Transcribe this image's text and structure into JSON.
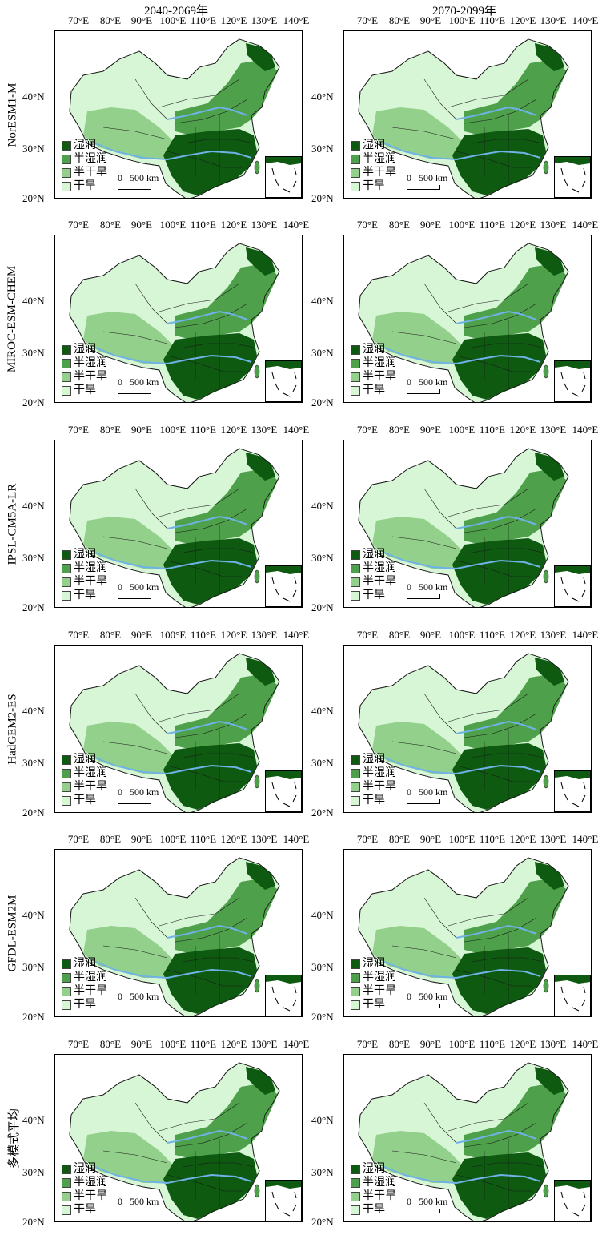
{
  "col_titles": [
    "2040-2069年",
    "2070-2099年"
  ],
  "lon_labels": [
    "70°E",
    "80°E",
    "90°E",
    "100°E",
    "110°E",
    "120°E",
    "130°E",
    "140°E"
  ],
  "lat_labels": [
    "40°N",
    "30°N",
    "20°N"
  ],
  "models": [
    "NorESM1-M",
    "MIROC-ESM-CHEM",
    "IPSL-CM5A-LR",
    "HadGEM2-ES",
    "GFDL-ESM2M",
    "多模式平均"
  ],
  "legend": [
    {
      "label": "湿润",
      "color": "#0d5a10"
    },
    {
      "label": "半湿润",
      "color": "#4fa04a"
    },
    {
      "label": "半干旱",
      "color": "#93d08b"
    },
    {
      "label": "干旱",
      "color": "#d6f6d6"
    }
  ],
  "scale_label": "0   500 km",
  "colors": {
    "river": "#6fb2e8",
    "boundary": "#1a1a1a"
  }
}
